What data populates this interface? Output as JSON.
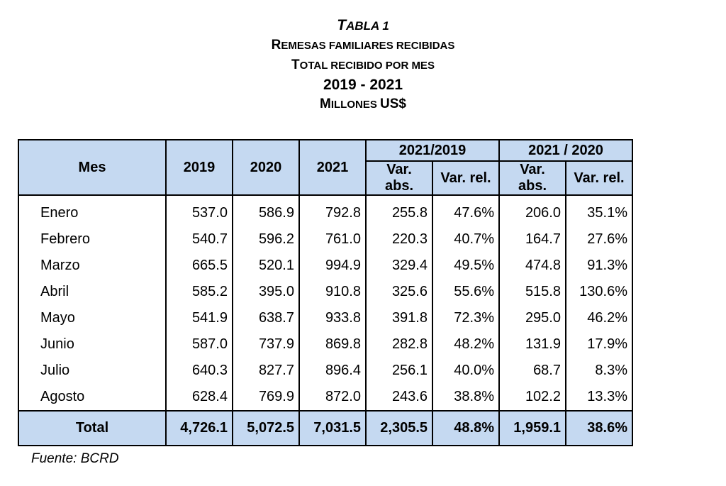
{
  "title": {
    "table_label": "Tabla 1",
    "line1": "Remesas familiares recibidas",
    "line2": "Total recibido por mes",
    "line3": "2019 - 2021",
    "line4": "Millones US$"
  },
  "table": {
    "headers": {
      "mes": "Mes",
      "y2019": "2019",
      "y2020": "2020",
      "y2021": "2021",
      "group1": "2021/2019",
      "group2": "2021 / 2020",
      "abs": "Var. abs.",
      "rel": "Var. rel."
    },
    "rows": [
      {
        "mes": "Enero",
        "y2019": "537.0",
        "y2020": "586.9",
        "y2021": "792.8",
        "abs19": "255.8",
        "rel19": "47.6%",
        "abs20": "206.0",
        "rel20": "35.1%"
      },
      {
        "mes": "Febrero",
        "y2019": "540.7",
        "y2020": "596.2",
        "y2021": "761.0",
        "abs19": "220.3",
        "rel19": "40.7%",
        "abs20": "164.7",
        "rel20": "27.6%"
      },
      {
        "mes": "Marzo",
        "y2019": "665.5",
        "y2020": "520.1",
        "y2021": "994.9",
        "abs19": "329.4",
        "rel19": "49.5%",
        "abs20": "474.8",
        "rel20": "91.3%"
      },
      {
        "mes": "Abril",
        "y2019": "585.2",
        "y2020": "395.0",
        "y2021": "910.8",
        "abs19": "325.6",
        "rel19": "55.6%",
        "abs20": "515.8",
        "rel20": "130.6%"
      },
      {
        "mes": "Mayo",
        "y2019": "541.9",
        "y2020": "638.7",
        "y2021": "933.8",
        "abs19": "391.8",
        "rel19": "72.3%",
        "abs20": "295.0",
        "rel20": "46.2%"
      },
      {
        "mes": "Junio",
        "y2019": "587.0",
        "y2020": "737.9",
        "y2021": "869.8",
        "abs19": "282.8",
        "rel19": "48.2%",
        "abs20": "131.9",
        "rel20": "17.9%"
      },
      {
        "mes": "Julio",
        "y2019": "640.3",
        "y2020": "827.7",
        "y2021": "896.4",
        "abs19": "256.1",
        "rel19": "40.0%",
        "abs20": "68.7",
        "rel20": "8.3%"
      },
      {
        "mes": "Agosto",
        "y2019": "628.4",
        "y2020": "769.9",
        "y2021": "872.0",
        "abs19": "243.6",
        "rel19": "38.8%",
        "abs20": "102.2",
        "rel20": "13.3%"
      }
    ],
    "total": {
      "mes": "Total",
      "y2019": "4,726.1",
      "y2020": "5,072.5",
      "y2021": "7,031.5",
      "abs19": "2,305.5",
      "rel19": "48.8%",
      "abs20": "1,959.1",
      "rel20": "38.6%"
    }
  },
  "source": "Fuente: BCRD",
  "colors": {
    "header_bg": "#c5d9f1",
    "border": "#000000"
  }
}
